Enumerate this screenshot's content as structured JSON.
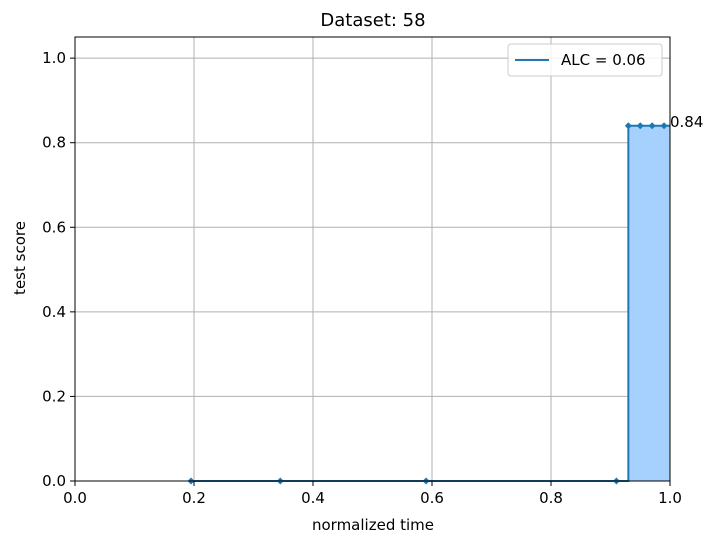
{
  "chart_data": {
    "type": "line",
    "title": "Dataset: 58",
    "xlabel": "normalized time",
    "ylabel": "test score",
    "xlim": [
      0,
      1
    ],
    "ylim": [
      0,
      1.05
    ],
    "x_ticks": [
      "0.0",
      "0.2",
      "0.4",
      "0.6",
      "0.8",
      "1.0"
    ],
    "y_ticks": [
      "0.0",
      "0.2",
      "0.4",
      "0.6",
      "0.8",
      "1.0"
    ],
    "grid": true,
    "legend_position": "top-right",
    "series": [
      {
        "name": "ALC = 0.06",
        "style": "step",
        "color": "#1f77b4",
        "fill_color": "#a6d1ff",
        "x": [
          0.195,
          0.345,
          0.59,
          0.91,
          0.93,
          0.95,
          0.97,
          0.99
        ],
        "y": [
          0,
          0,
          0,
          0,
          0.84,
          0.84,
          0.84,
          0.84
        ]
      }
    ],
    "annotations": [
      {
        "text": "0.84",
        "x": 1.0,
        "y": 0.84
      }
    ]
  }
}
